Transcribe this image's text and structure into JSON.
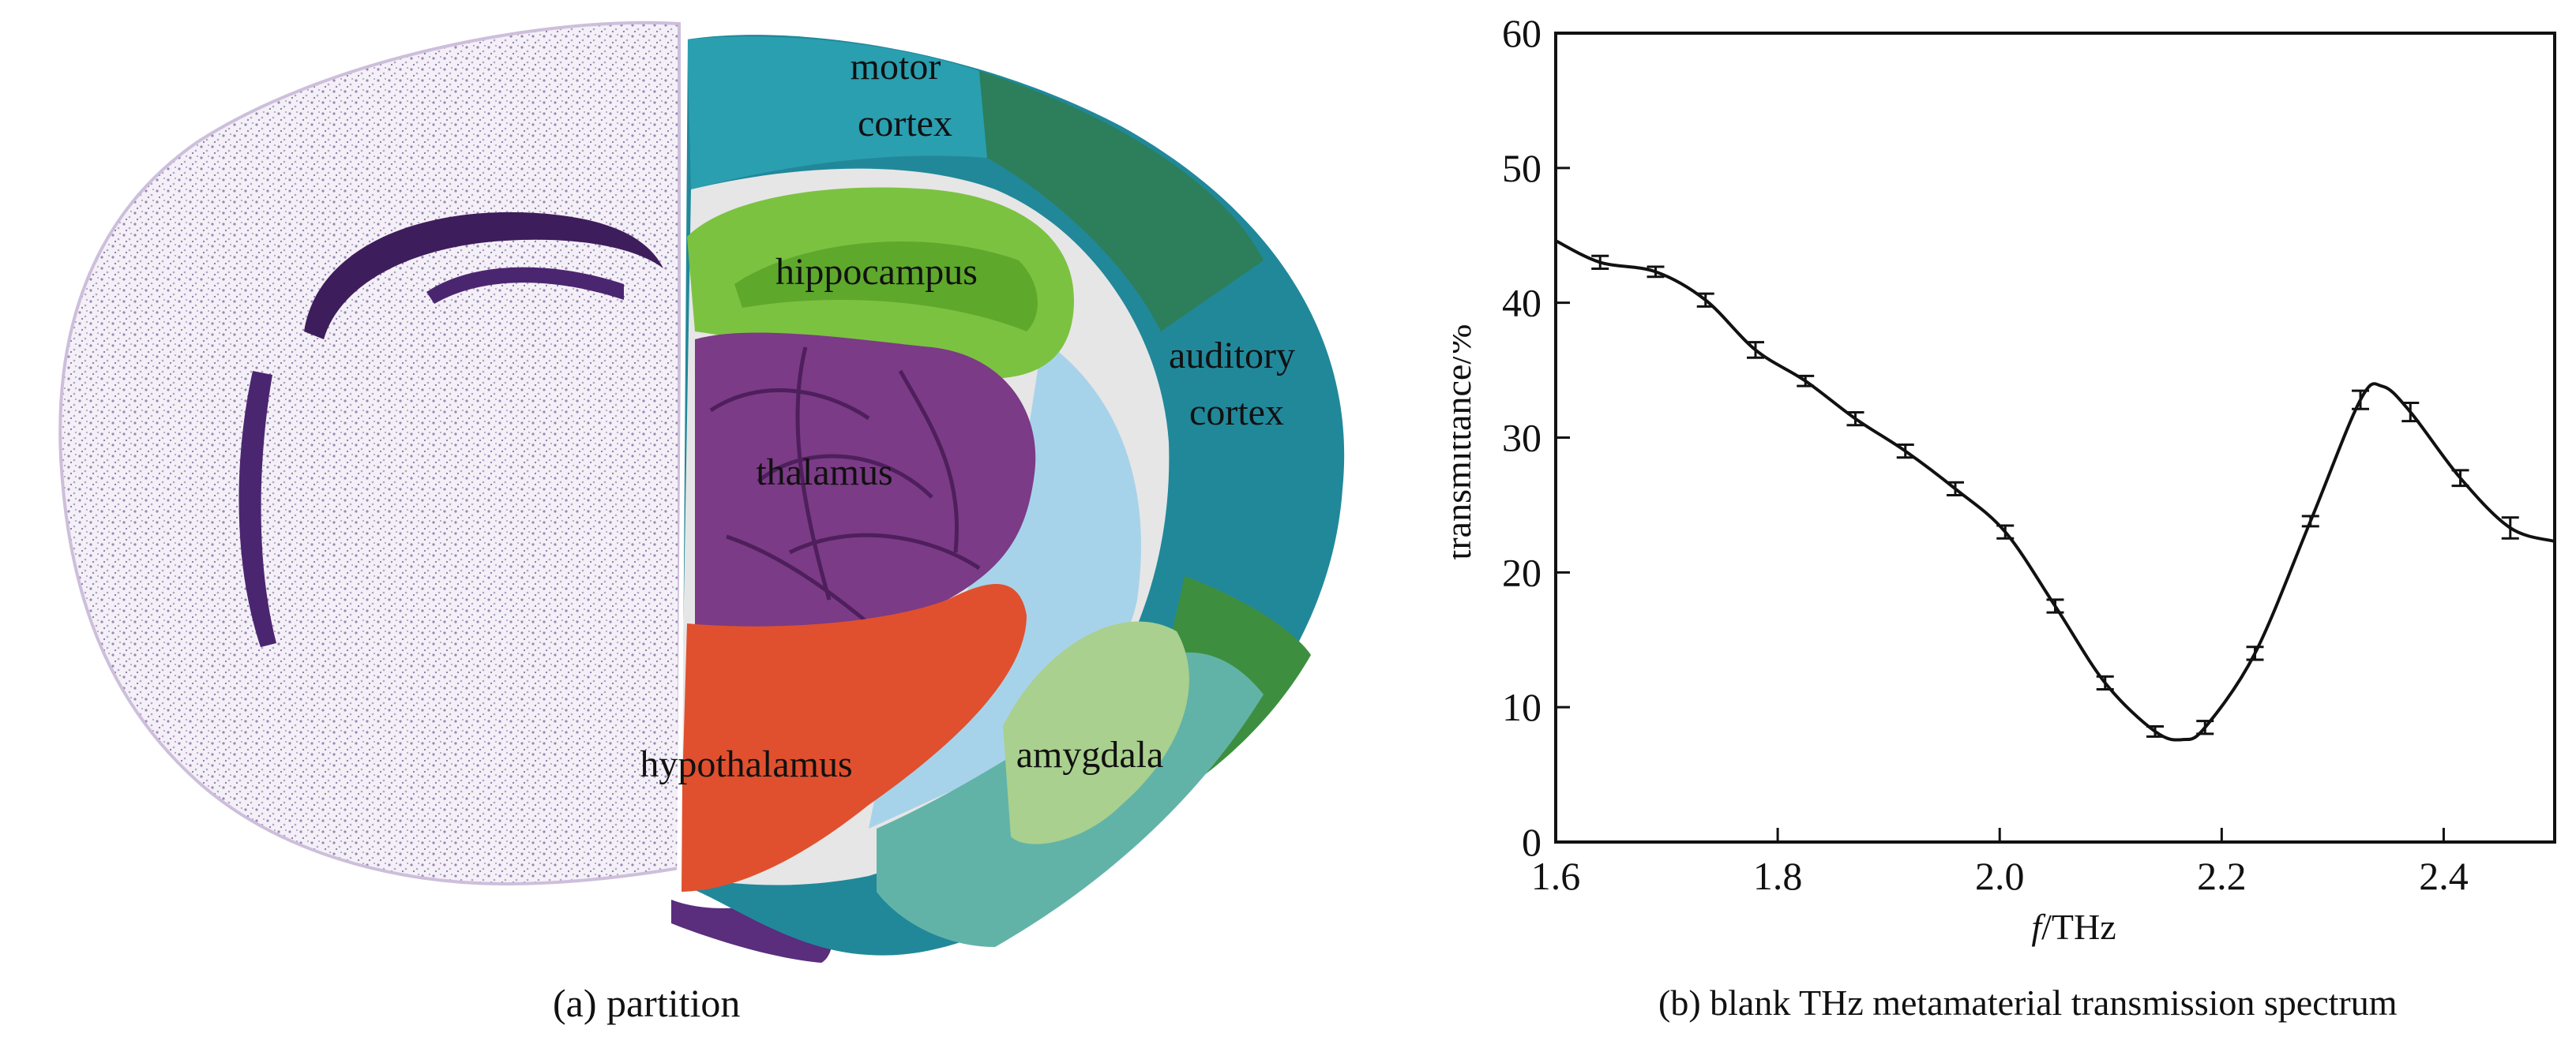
{
  "panel_a": {
    "caption": "(a) partition",
    "regions": {
      "motor_line1": "motor",
      "motor_line2": "cortex",
      "hippocampus": "hippocampus",
      "auditory_line1": "auditory",
      "auditory_line2": "cortex",
      "thalamus": "thalamus",
      "hypothalamus": "hypothalamus",
      "amygdala": "amygdala"
    },
    "colors": {
      "stain": "#6a4c8c",
      "motor_cortex": "#2a9fb0",
      "cortex_dark_green": "#2c7f5a",
      "auditory_cortex": "#21889a",
      "hippocampus": "#7cc241",
      "thalamus": "#7b3b86",
      "hypothalamus": "#e0502e",
      "amygdala": "#a9d08e",
      "light_blue": "#a7d3ea",
      "teal_lower": "#62b3a7"
    }
  },
  "panel_b": {
    "caption": "(b) blank THz metamaterial transmission spectrum",
    "chart_data": {
      "type": "line",
      "title": "",
      "xlabel_italic": "f",
      "xlabel_rest": "/THz",
      "ylabel": "transmittance/%",
      "xlim": [
        1.6,
        2.5
      ],
      "ylim": [
        0,
        60
      ],
      "xticks": [
        1.6,
        1.8,
        2.0,
        2.2,
        2.4
      ],
      "xtick_labels": [
        "1.6",
        "1.8",
        "2.0",
        "2.2",
        "2.4"
      ],
      "yticks": [
        0,
        10,
        20,
        30,
        40,
        50,
        60
      ],
      "ytick_labels": [
        "0",
        "10",
        "20",
        "30",
        "40",
        "50",
        "60"
      ],
      "grid": false,
      "curve": {
        "x": [
          1.6,
          1.64,
          1.69,
          1.735,
          1.78,
          1.825,
          1.87,
          1.915,
          1.96,
          2.005,
          2.05,
          2.095,
          2.14,
          2.165,
          2.185,
          2.23,
          2.28,
          2.325,
          2.345,
          2.37,
          2.415,
          2.46,
          2.5
        ],
        "y": [
          44.6,
          43.0,
          42.3,
          40.2,
          36.5,
          34.2,
          31.4,
          29.0,
          26.2,
          23.0,
          17.5,
          11.8,
          8.2,
          7.6,
          8.5,
          14.0,
          23.8,
          32.8,
          33.8,
          31.9,
          27.0,
          23.3,
          22.3
        ]
      },
      "error_bars": {
        "x": [
          1.64,
          1.69,
          1.735,
          1.78,
          1.825,
          1.87,
          1.915,
          1.96,
          2.005,
          2.05,
          2.095,
          2.14,
          2.185,
          2.23,
          2.28,
          2.325,
          2.37,
          2.415,
          2.46
        ],
        "y": [
          43.0,
          42.3,
          40.2,
          36.5,
          34.2,
          31.4,
          29.0,
          26.2,
          23.0,
          17.5,
          11.8,
          8.2,
          8.5,
          14.0,
          23.8,
          32.8,
          31.9,
          27.0,
          23.3
        ],
        "err": [
          0.3,
          0.2,
          0.3,
          0.4,
          0.2,
          0.3,
          0.3,
          0.3,
          0.3,
          0.3,
          0.3,
          0.2,
          0.3,
          0.3,
          0.2,
          0.5,
          0.5,
          0.4,
          0.6
        ]
      }
    }
  }
}
